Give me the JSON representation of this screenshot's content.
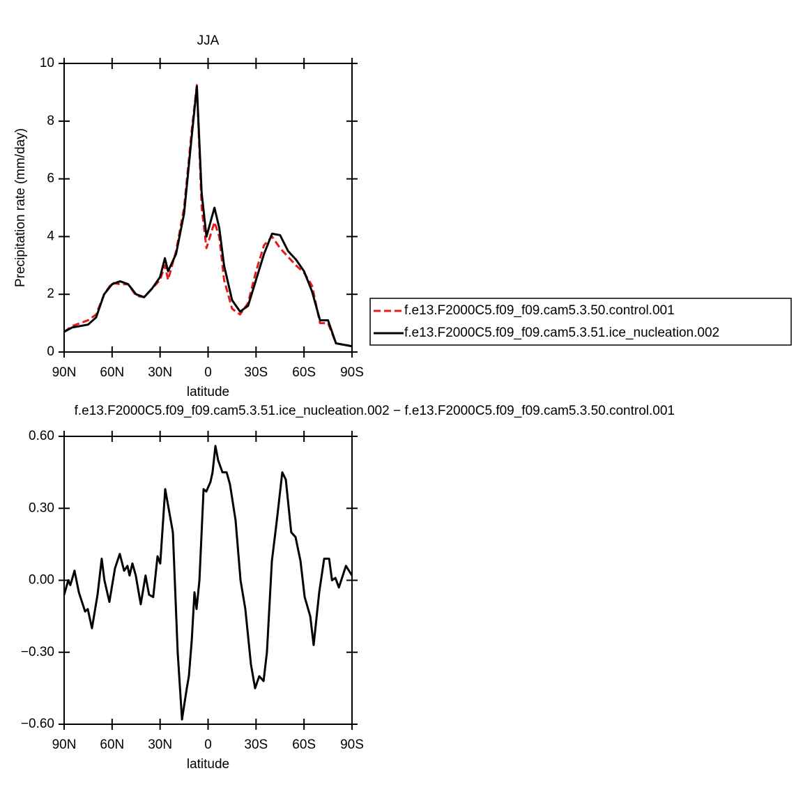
{
  "chart_data": [
    {
      "type": "line",
      "title": "JJA",
      "y_label": "Precipitation rate (mm/day)",
      "x_label": "latitude",
      "x": [
        90,
        85,
        80,
        75,
        70,
        65,
        60,
        55,
        50,
        45,
        40,
        35,
        30,
        27,
        25,
        20,
        15,
        10,
        7,
        4,
        1,
        -4,
        -7,
        -10,
        -15,
        -20,
        -25,
        -30,
        -35,
        -40,
        -45,
        -50,
        -55,
        -60,
        -65,
        -70,
        -75,
        -80,
        -85,
        -90
      ],
      "xlim": [
        90,
        -90
      ],
      "xticks": [
        {
          "value": 90,
          "label": "90N"
        },
        {
          "value": 60,
          "label": "60N"
        },
        {
          "value": 30,
          "label": "30N"
        },
        0,
        {
          "value": -30,
          "label": "30S"
        },
        {
          "value": -60,
          "label": "60S"
        },
        {
          "value": -90,
          "label": "90S"
        }
      ],
      "ylim": [
        0,
        10
      ],
      "yticks": [
        0,
        2,
        4,
        6,
        8,
        10
      ],
      "legend": "right",
      "series": [
        {
          "name": "f.e13.F2000C5.f09_f09.cam5.3.50.control.001",
          "color": "#e41a1c",
          "line_style": "dashed",
          "values": [
            0.7,
            0.9,
            1.0,
            1.1,
            1.3,
            2.0,
            2.4,
            2.35,
            2.35,
            1.95,
            1.9,
            2.2,
            2.5,
            3.0,
            2.5,
            3.5,
            5.0,
            7.8,
            9.25,
            5.0,
            3.6,
            4.5,
            4.0,
            2.5,
            1.5,
            1.3,
            1.7,
            2.8,
            3.7,
            4.0,
            3.6,
            3.3,
            3.0,
            2.75,
            2.3,
            1.0,
            1.0,
            0.3,
            0.25,
            0.2
          ]
        },
        {
          "name": "f.e13.F2000C5.f09_f09.cam5.3.51.ice_nucleation.002",
          "color": "#000000",
          "line_style": "solid",
          "values": [
            0.7,
            0.85,
            0.9,
            0.95,
            1.2,
            2.0,
            2.35,
            2.45,
            2.35,
            2.0,
            1.9,
            2.2,
            2.6,
            3.25,
            2.8,
            3.4,
            4.8,
            7.6,
            9.2,
            5.5,
            4.0,
            5.0,
            4.3,
            3.0,
            1.8,
            1.4,
            1.6,
            2.5,
            3.4,
            4.1,
            4.05,
            3.5,
            3.2,
            2.8,
            2.1,
            1.1,
            1.1,
            0.3,
            0.25,
            0.2
          ]
        }
      ]
    },
    {
      "type": "line",
      "title": "f.e13.F2000C5.f09_f09.cam5.3.51.ice_nucleation.002 − f.e13.F2000C5.f09_f09.cam5.3.50.control.001",
      "x_label": "latitude",
      "x": [
        90,
        87.4,
        86.1,
        83.5,
        80.8,
        76.9,
        75.2,
        72.6,
        69.1,
        66.5,
        64.8,
        61.7,
        58.2,
        55.2,
        52.5,
        50.4,
        49.1,
        47.3,
        45.2,
        42.1,
        39.1,
        36.9,
        34.3,
        31.6,
        29.9,
        26.8,
        22.0,
        19.0,
        16.3,
        13.3,
        12.0,
        10.2,
        8.5,
        7.2,
        5.4,
        2.8,
        1.1,
        -1.5,
        -2.8,
        -4.6,
        -6.3,
        -9.0,
        -11.6,
        -13.7,
        -17.2,
        -20.3,
        -23.3,
        -26.8,
        -29.4,
        -32.0,
        -34.7,
        -36.8,
        -39.9,
        -43.0,
        -46.4,
        -48.6,
        -52.0,
        -54.7,
        -57.8,
        -60.4,
        -63.9,
        -66.0,
        -69.5,
        -72.6,
        -75.7,
        -77.5,
        -79.6,
        -81.8,
        -86.2,
        -90
      ],
      "values": [
        -0.06,
        0.0,
        -0.02,
        0.04,
        -0.05,
        -0.13,
        -0.12,
        -0.2,
        -0.06,
        0.09,
        0.0,
        -0.09,
        0.05,
        0.11,
        0.04,
        0.06,
        0.02,
        0.07,
        0.02,
        -0.1,
        0.02,
        -0.06,
        -0.07,
        0.1,
        0.07,
        0.38,
        0.2,
        -0.3,
        -0.58,
        -0.45,
        -0.4,
        -0.25,
        -0.05,
        -0.12,
        0.0,
        0.38,
        0.37,
        0.41,
        0.45,
        0.56,
        0.5,
        0.45,
        0.45,
        0.4,
        0.25,
        0.0,
        -0.12,
        -0.35,
        -0.45,
        -0.4,
        -0.42,
        -0.3,
        0.08,
        0.25,
        0.45,
        0.42,
        0.2,
        0.18,
        0.08,
        -0.07,
        -0.15,
        -0.27,
        -0.05,
        0.09,
        0.09,
        0.0,
        0.01,
        -0.03,
        0.06,
        0.02
      ],
      "color": "#000000",
      "xlim": [
        90,
        -90
      ],
      "xticks": [
        {
          "value": 90,
          "label": "90N"
        },
        {
          "value": 60,
          "label": "60N"
        },
        {
          "value": 30,
          "label": "30N"
        },
        0,
        {
          "value": -30,
          "label": "30S"
        },
        {
          "value": -60,
          "label": "60S"
        },
        {
          "value": -90,
          "label": "90S"
        }
      ],
      "ylim": [
        -0.6,
        0.6
      ],
      "yticks": [
        {
          "value": -0.6,
          "label": "−0.60"
        },
        {
          "value": -0.3,
          "label": "−0.30"
        },
        {
          "value": 0,
          "label": "0.00"
        },
        {
          "value": 0.3,
          "label": "0.30"
        },
        {
          "value": 0.6,
          "label": "0.60"
        }
      ]
    }
  ]
}
